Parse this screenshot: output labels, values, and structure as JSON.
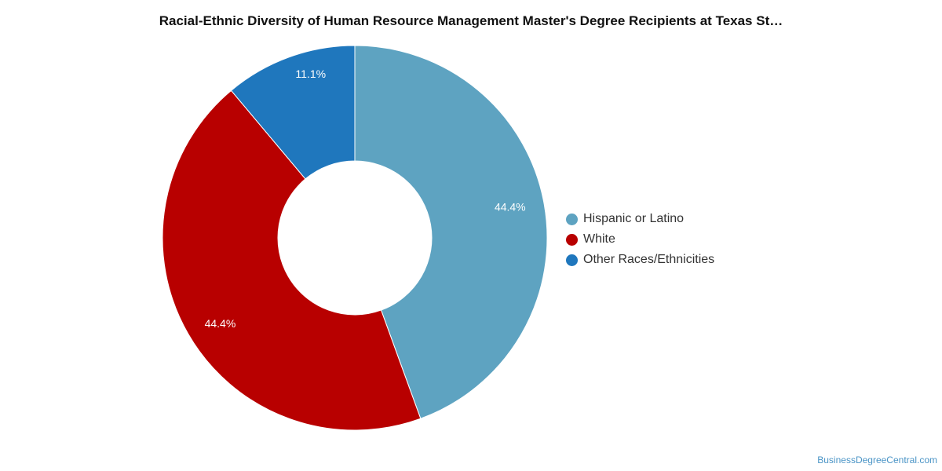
{
  "title": "Racial-Ethnic Diversity of Human Resource Management Master's Degree Recipients at Texas St…",
  "source": "BusinessDegreeCentral.com",
  "chart_data": {
    "type": "pie",
    "variant": "donut",
    "title": "Racial-Ethnic Diversity of Human Resource Management Master's Degree Recipients at Texas St…",
    "categories": [
      "Hispanic or Latino",
      "White",
      "Other Races/Ethnicities"
    ],
    "values": [
      44.4,
      44.4,
      11.1
    ],
    "labels": [
      "44.4%",
      "44.4%",
      "11.1%"
    ],
    "colors": [
      "#5ea3c1",
      "#b80000",
      "#1f77bd"
    ],
    "legend_position": "right",
    "start_angle": "top",
    "direction": "clockwise"
  }
}
